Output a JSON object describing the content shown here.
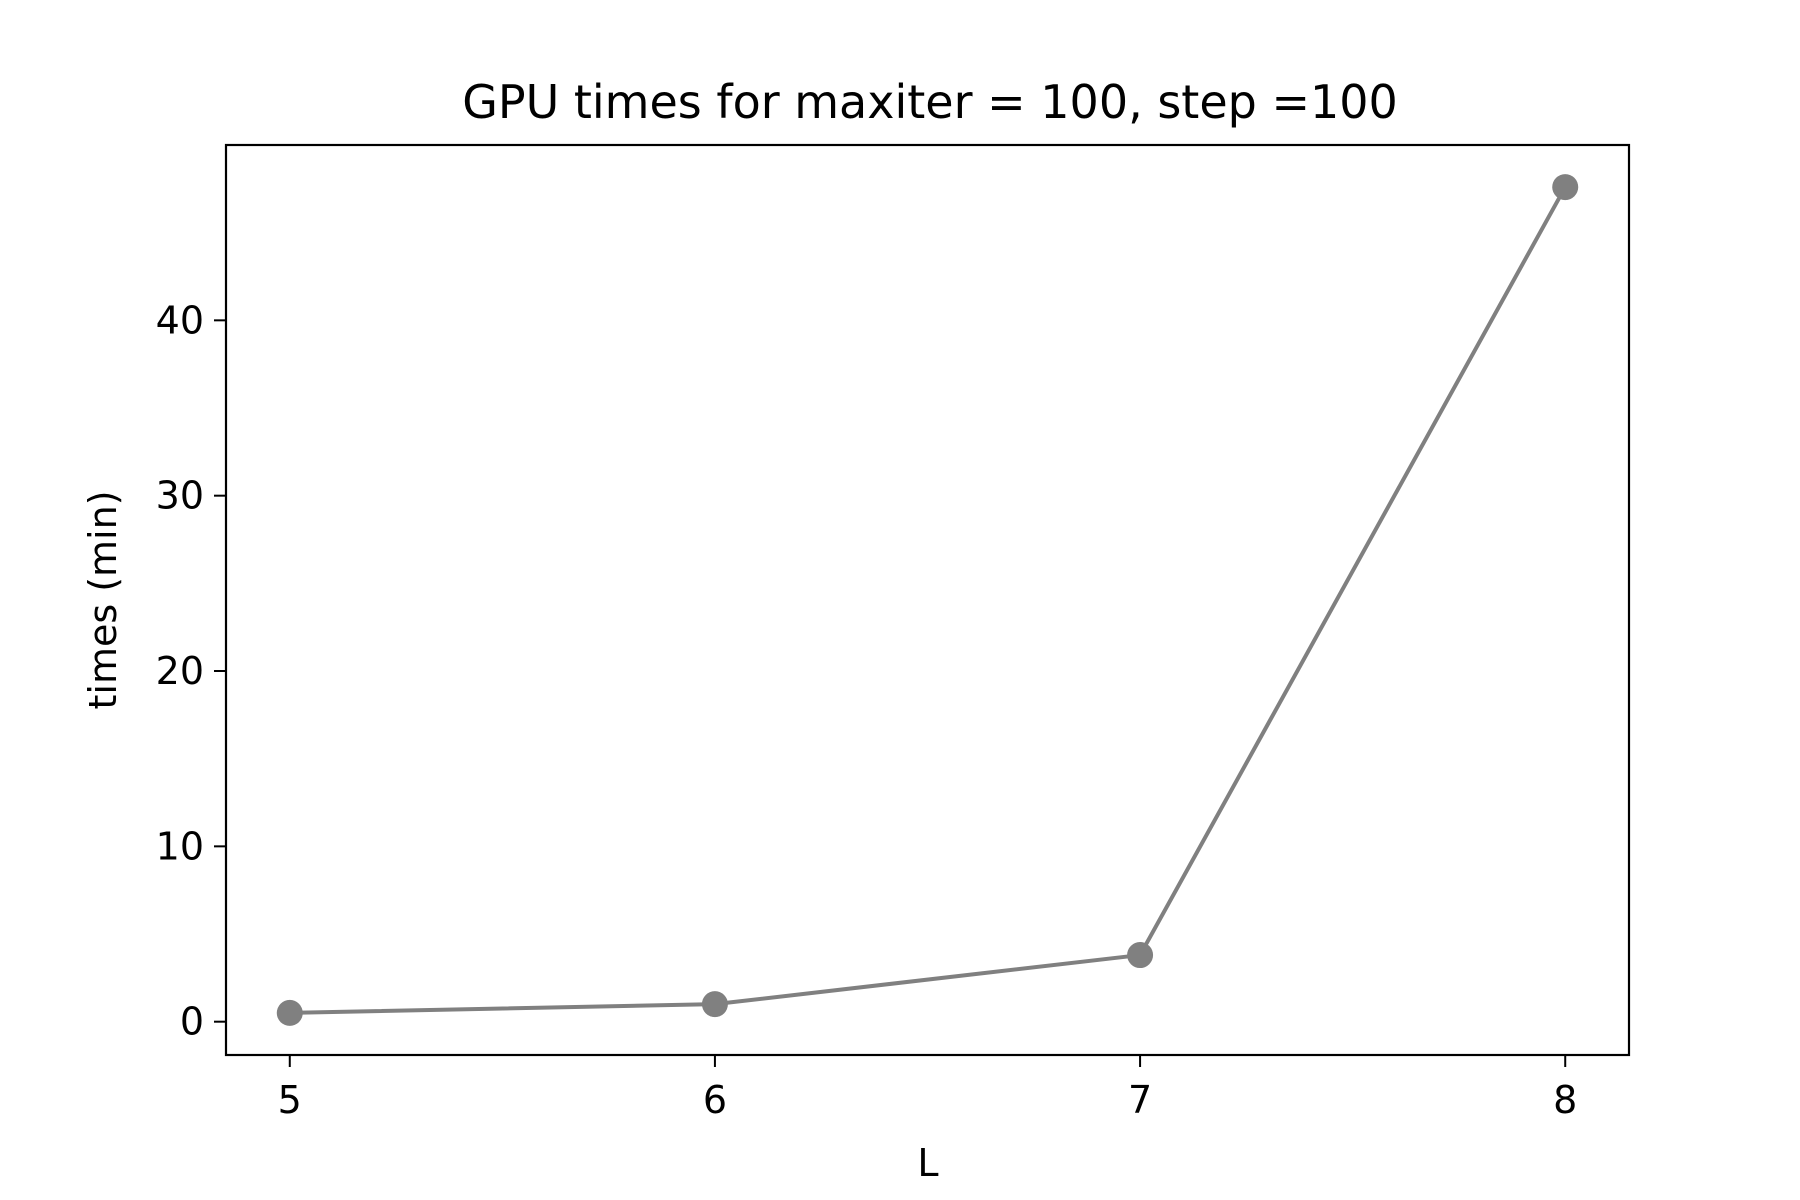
{
  "chart_data": {
    "type": "line",
    "title": "GPU times for maxiter = 100, step =100",
    "xlabel": "L",
    "ylabel": "times (min)",
    "x": [
      5,
      6,
      7,
      8
    ],
    "series": [
      {
        "values": [
          0.5,
          1.0,
          3.8,
          47.6
        ],
        "color": "#808080",
        "marker": "circle"
      }
    ],
    "xticks": [
      5,
      6,
      7,
      8
    ],
    "yticks": [
      0,
      10,
      20,
      30,
      40
    ],
    "xlim": [
      4.85,
      8.15
    ],
    "ylim": [
      -1.9,
      50.0
    ],
    "grid": false,
    "legend": "none"
  }
}
